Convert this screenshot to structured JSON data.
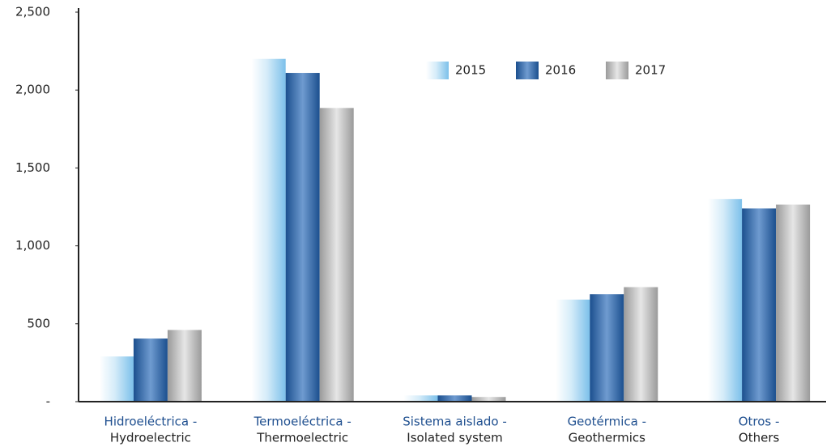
{
  "chart_data": {
    "type": "bar",
    "categories": [
      [
        "Hidroeléctrica -",
        "Hydroelectric"
      ],
      [
        "Termoeléctrica -",
        "Thermoelectric"
      ],
      [
        "Sistema aislado -",
        "Isolated system"
      ],
      [
        "Geotérmica -",
        "Geothermics"
      ],
      [
        "Otros -",
        "Others"
      ]
    ],
    "series": [
      {
        "name": "2015",
        "color": "#7cc0ea",
        "values": [
          290,
          2200,
          40,
          655,
          1300
        ]
      },
      {
        "name": "2016",
        "color": "#1b4f8e",
        "values": [
          405,
          2110,
          40,
          690,
          1240
        ]
      },
      {
        "name": "2017",
        "color": "#9a9a9a",
        "values": [
          460,
          1885,
          30,
          735,
          1265
        ]
      }
    ],
    "ylim": [
      0,
      2500
    ],
    "yticks": [
      {
        "value": 0,
        "label": "-"
      },
      500,
      {
        "value": 1000,
        "label": "1,000"
      },
      {
        "value": 1500,
        "label": "1,500"
      },
      {
        "value": 2000,
        "label": "2,000"
      },
      {
        "value": 2500,
        "label": "2,500"
      }
    ]
  }
}
